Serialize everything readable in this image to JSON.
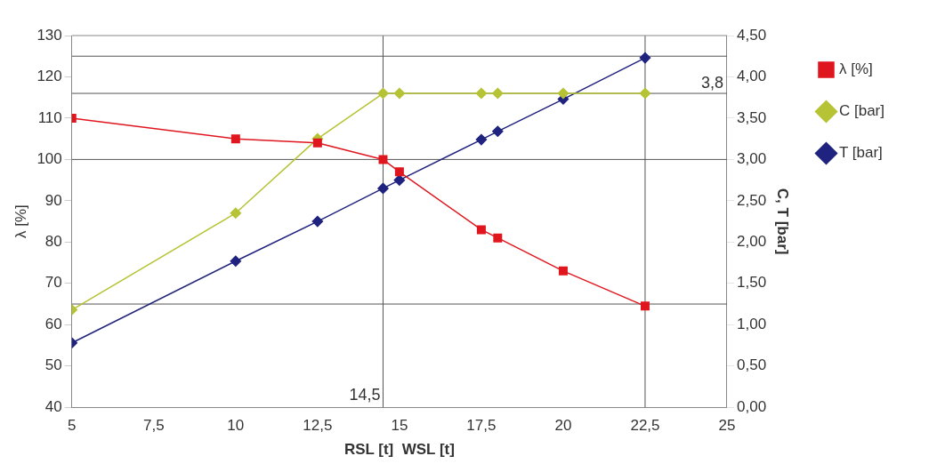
{
  "chart_data": {
    "type": "line",
    "xlabel": "RSL [t]  WSL [t]",
    "ylabel": "λ [%]",
    "y2label": "C, T [bar]",
    "x": [
      5,
      10,
      12.5,
      14.5,
      15,
      17.5,
      18,
      20,
      22.5
    ],
    "series": [
      {
        "name": "λ [%]",
        "color": "#e0161e",
        "marker": "square",
        "values": [
          110,
          105,
          104,
          100,
          97,
          83,
          81,
          73,
          64.5
        ]
      },
      {
        "name": "C [bar]",
        "color": "#b5c334",
        "marker": "diamond",
        "axis": "y2",
        "values": [
          1.18,
          2.35,
          3.25,
          3.8,
          3.8,
          3.8,
          3.8,
          3.8,
          3.8
        ]
      },
      {
        "name": "T [bar]",
        "color": "#1f237f",
        "marker": "diamond",
        "axis": "y2",
        "values": [
          0.78,
          1.77,
          2.25,
          2.65,
          2.75,
          3.24,
          3.34,
          3.73,
          4.23
        ]
      }
    ],
    "xlim": [
      5,
      25
    ],
    "xticks": [
      5,
      {
        "value": 7.5,
        "label": "7,5"
      },
      10,
      {
        "value": 12.5,
        "label": "12,5"
      },
      15,
      {
        "value": 17.5,
        "label": "17,5"
      },
      20,
      {
        "value": 22.5,
        "label": "22,5"
      },
      25
    ],
    "ylim": [
      40,
      130
    ],
    "yticks": [
      40,
      50,
      60,
      70,
      80,
      90,
      100,
      110,
      120,
      130
    ],
    "y2lim": [
      0,
      4.5
    ],
    "y2ticks": [
      {
        "value": 0,
        "label": "0,00"
      },
      {
        "value": 0.5,
        "label": "0,50"
      },
      {
        "value": 1,
        "label": "1,00"
      },
      {
        "value": 1.5,
        "label": "1,50"
      },
      {
        "value": 2,
        "label": "2,00"
      },
      {
        "value": 2.5,
        "label": "2,50"
      },
      {
        "value": 3,
        "label": "3,00"
      },
      {
        "value": 3.5,
        "label": "3,50"
      },
      {
        "value": 4,
        "label": "4,00"
      },
      {
        "value": 4.5,
        "label": "4,50"
      }
    ],
    "ref_lines": [
      {
        "axis": "y",
        "value": 125,
        "color": "#555555"
      },
      {
        "axis": "y",
        "value": 100,
        "color": "#555555"
      },
      {
        "axis": "y",
        "value": 65,
        "color": "#555555"
      },
      {
        "axis": "y2",
        "value": 3.8,
        "label": "3,8",
        "color": "#555555"
      },
      {
        "axis": "x",
        "value": 14.5,
        "label": "14,5",
        "color": "#555555"
      },
      {
        "axis": "x",
        "value": 22.5,
        "color": "#555555"
      }
    ],
    "grid": false,
    "legend": "right",
    "line_style": "solid"
  }
}
